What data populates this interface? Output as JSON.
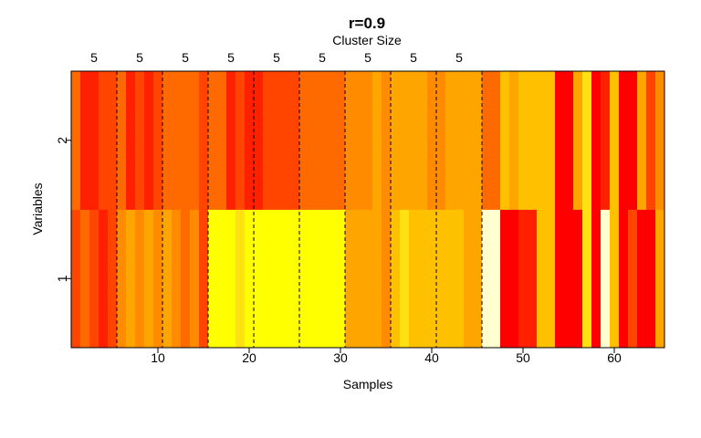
{
  "chart_data": {
    "type": "heatmap",
    "title": "r=0.9",
    "subtitle": "Cluster Size",
    "xlabel": "Samples",
    "ylabel": "Variables",
    "x_ticks": [
      10,
      20,
      30,
      40,
      50,
      60
    ],
    "y_ticks": [
      1,
      2
    ],
    "xlim": [
      1,
      65
    ],
    "n_samples": 65,
    "cluster_sizes": [
      5,
      5,
      5,
      5,
      5,
      5,
      5,
      5,
      5
    ],
    "cluster_boundaries": [
      5.5,
      10.5,
      15.5,
      20.5,
      25.5,
      30.5,
      35.5,
      40.5,
      45.5
    ],
    "color_palette": [
      "#FF0000",
      "#FF2000",
      "#FF4500",
      "#FF6A00",
      "#FF8C00",
      "#FFA500",
      "#FFC000",
      "#FFE010",
      "#FFFF00",
      "#FFFFD0"
    ],
    "rows": [
      {
        "variable": "1",
        "levels": [
          2,
          3,
          2,
          1,
          2,
          4,
          5,
          4,
          5,
          4,
          5,
          4,
          3,
          4,
          2,
          8,
          8,
          8,
          7,
          8,
          8,
          8,
          8,
          8,
          8,
          8,
          8,
          8,
          8,
          8,
          5,
          5,
          5,
          5,
          4,
          6,
          7,
          6,
          6,
          6,
          6,
          6,
          6,
          5,
          5,
          9,
          9,
          0,
          0,
          1,
          1,
          6,
          6,
          0,
          0,
          0,
          7,
          0,
          9,
          6,
          0,
          2,
          0,
          0,
          5
        ]
      },
      {
        "variable": "2",
        "levels": [
          3,
          1,
          1,
          2,
          2,
          3,
          1,
          2,
          1,
          2,
          3,
          3,
          3,
          3,
          2,
          3,
          3,
          1,
          2,
          1,
          1,
          2,
          2,
          2,
          2,
          3,
          3,
          3,
          3,
          3,
          4,
          4,
          4,
          5,
          4,
          5,
          5,
          5,
          5,
          4,
          4,
          5,
          5,
          5,
          5,
          3,
          3,
          6,
          5,
          6,
          6,
          6,
          6,
          0,
          0,
          5,
          7,
          0,
          1,
          6,
          0,
          0,
          5,
          2,
          4
        ]
      }
    ]
  }
}
